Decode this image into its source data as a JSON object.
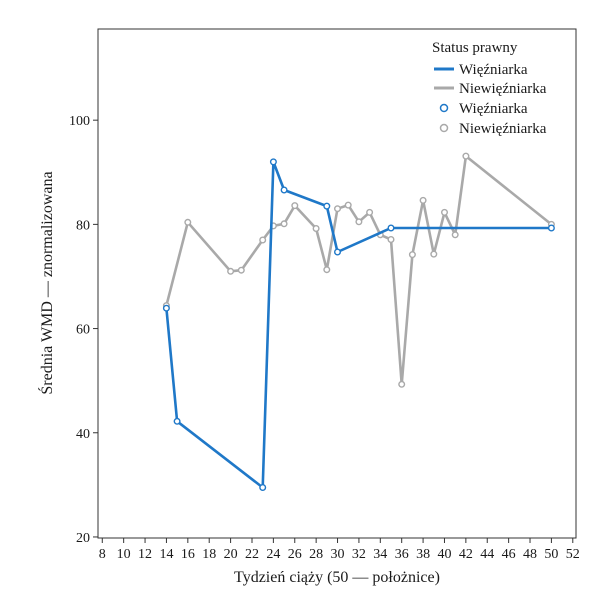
{
  "chart_data": {
    "type": "line",
    "xlabel": "Tydzień ciąży (50 — położnice)",
    "ylabel": "Średnia WMD — znormalizowana",
    "xlim": [
      7.6,
      52.3
    ],
    "ylim": [
      19.8,
      117.5
    ],
    "xticks": [
      8,
      10,
      12,
      14,
      16,
      18,
      20,
      22,
      24,
      26,
      28,
      30,
      32,
      34,
      36,
      38,
      40,
      42,
      44,
      46,
      48,
      50,
      52
    ],
    "yticks": [
      20,
      40,
      60,
      80,
      100
    ],
    "grid": false,
    "legend": {
      "title": "Status prawny",
      "placement": "top-right",
      "line_labels": [
        "Więźniarka",
        "Niewięźniarka"
      ],
      "marker_labels": [
        "Więźniarka",
        "Niewięźniarka"
      ]
    },
    "colors": {
      "Więźniarka": "#1f78c8",
      "Niewięźniarka": "#a9a9a9"
    },
    "series": [
      {
        "name": "Niewięźniarka",
        "x": [
          14,
          16,
          20,
          21,
          23,
          24,
          25,
          26,
          28,
          29,
          30,
          31,
          32,
          33,
          34,
          35,
          36,
          37,
          38,
          39,
          40,
          41,
          42,
          50
        ],
        "y": [
          64.4,
          80.4,
          71.0,
          71.2,
          77.0,
          79.7,
          80.1,
          83.6,
          79.2,
          71.3,
          83.0,
          83.7,
          80.5,
          82.3,
          78.0,
          77.1,
          49.3,
          74.2,
          84.6,
          74.3,
          82.3,
          78.0,
          93.1,
          80.0
        ]
      },
      {
        "name": "Więźniarka",
        "x": [
          14,
          15,
          23,
          24,
          25,
          29,
          30,
          35,
          50
        ],
        "y": [
          63.9,
          42.2,
          29.5,
          92.0,
          86.6,
          83.5,
          74.7,
          79.3,
          79.3
        ]
      }
    ]
  }
}
